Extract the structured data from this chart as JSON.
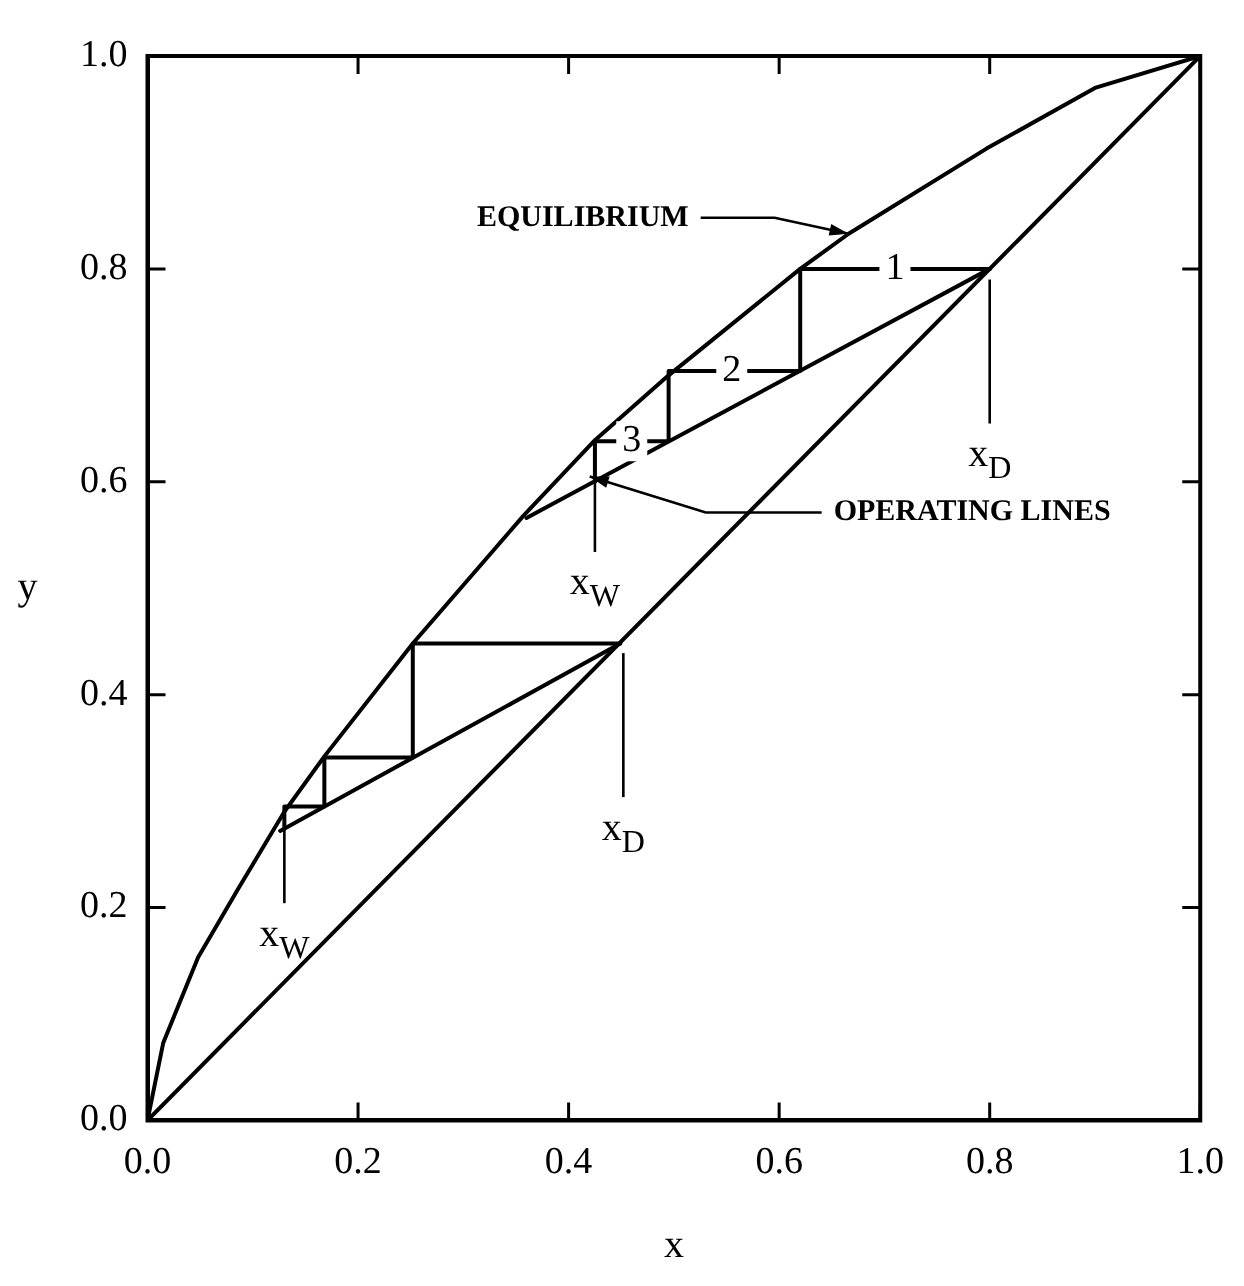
{
  "chart_data": {
    "type": "line",
    "xlabel": "x",
    "ylabel": "y",
    "xlim": [
      0,
      1
    ],
    "ylim": [
      0,
      1
    ],
    "xticks": [
      {
        "value": 0,
        "label": "0.0"
      },
      {
        "value": 0.2,
        "label": "0.2"
      },
      {
        "value": 0.4,
        "label": "0.4"
      },
      {
        "value": 0.6,
        "label": "0.6"
      },
      {
        "value": 0.8,
        "label": "0.8"
      },
      {
        "value": 1,
        "label": "1.0"
      }
    ],
    "yticks": [
      {
        "value": 0,
        "label": "0.0"
      },
      {
        "value": 0.2,
        "label": "0.2"
      },
      {
        "value": 0.4,
        "label": "0.4"
      },
      {
        "value": 0.6,
        "label": "0.6"
      },
      {
        "value": 0.8,
        "label": "0.8"
      },
      {
        "value": 1,
        "label": "1.0"
      }
    ],
    "grid": false,
    "legend": false,
    "marker": "none",
    "series": [
      {
        "color": "#000000",
        "x": [
          0,
          0.015,
          0.048,
          0.087,
          0.13,
          0.168,
          0.252,
          0.357,
          0.425,
          0.495,
          0.62,
          0.666,
          0.797,
          0.9,
          1
        ],
        "values": [
          0,
          0.073,
          0.153,
          0.219,
          0.29,
          0.342,
          0.448,
          0.568,
          0.639,
          0.7,
          0.8,
          0.833,
          0.913,
          0.97,
          1
        ]
      },
      {
        "color": "#000000",
        "x": [
          0,
          1
        ],
        "values": [
          0,
          1
        ]
      },
      {
        "color": "#000000",
        "x": [
          0.8,
          0.36
        ],
        "values": [
          0.8,
          0.566
        ]
      },
      {
        "color": "#000000",
        "x": [
          0.449,
          0.126
        ],
        "values": [
          0.448,
          0.272
        ]
      },
      {
        "color": "#000000",
        "x": [
          0.8,
          0.62,
          0.62,
          0.495,
          0.495,
          0.425,
          0.425
        ],
        "values": [
          0.8,
          0.8,
          0.704,
          0.704,
          0.638,
          0.638,
          0.6
        ]
      },
      {
        "color": "#000000",
        "x": [
          0.449,
          0.252,
          0.252,
          0.168,
          0.168,
          0.13,
          0.13
        ],
        "values": [
          0.448,
          0.448,
          0.341,
          0.341,
          0.295,
          0.295,
          0.274
        ]
      }
    ],
    "annotations": [
      {
        "text": "EQUILIBRIUM",
        "x": 0.666,
        "y": 0.833
      },
      {
        "text": "OPERATING LINES",
        "x": 0.42,
        "y": 0.605
      },
      {
        "text": "1",
        "x": 0.71,
        "y": 0.8
      },
      {
        "text": "2",
        "x": 0.555,
        "y": 0.704
      },
      {
        "text": "3",
        "x": 0.46,
        "y": 0.638
      },
      {
        "text": "x$_{D}$",
        "x": 0.8,
        "y": 0.79
      },
      {
        "text": "x$_{W}$",
        "x": 0.425,
        "y": 0.628
      },
      {
        "text": "x$_{D}$",
        "x": 0.452,
        "y": 0.439
      },
      {
        "text": "x$_{W}$",
        "x": 0.13,
        "y": 0.283
      }
    ]
  }
}
